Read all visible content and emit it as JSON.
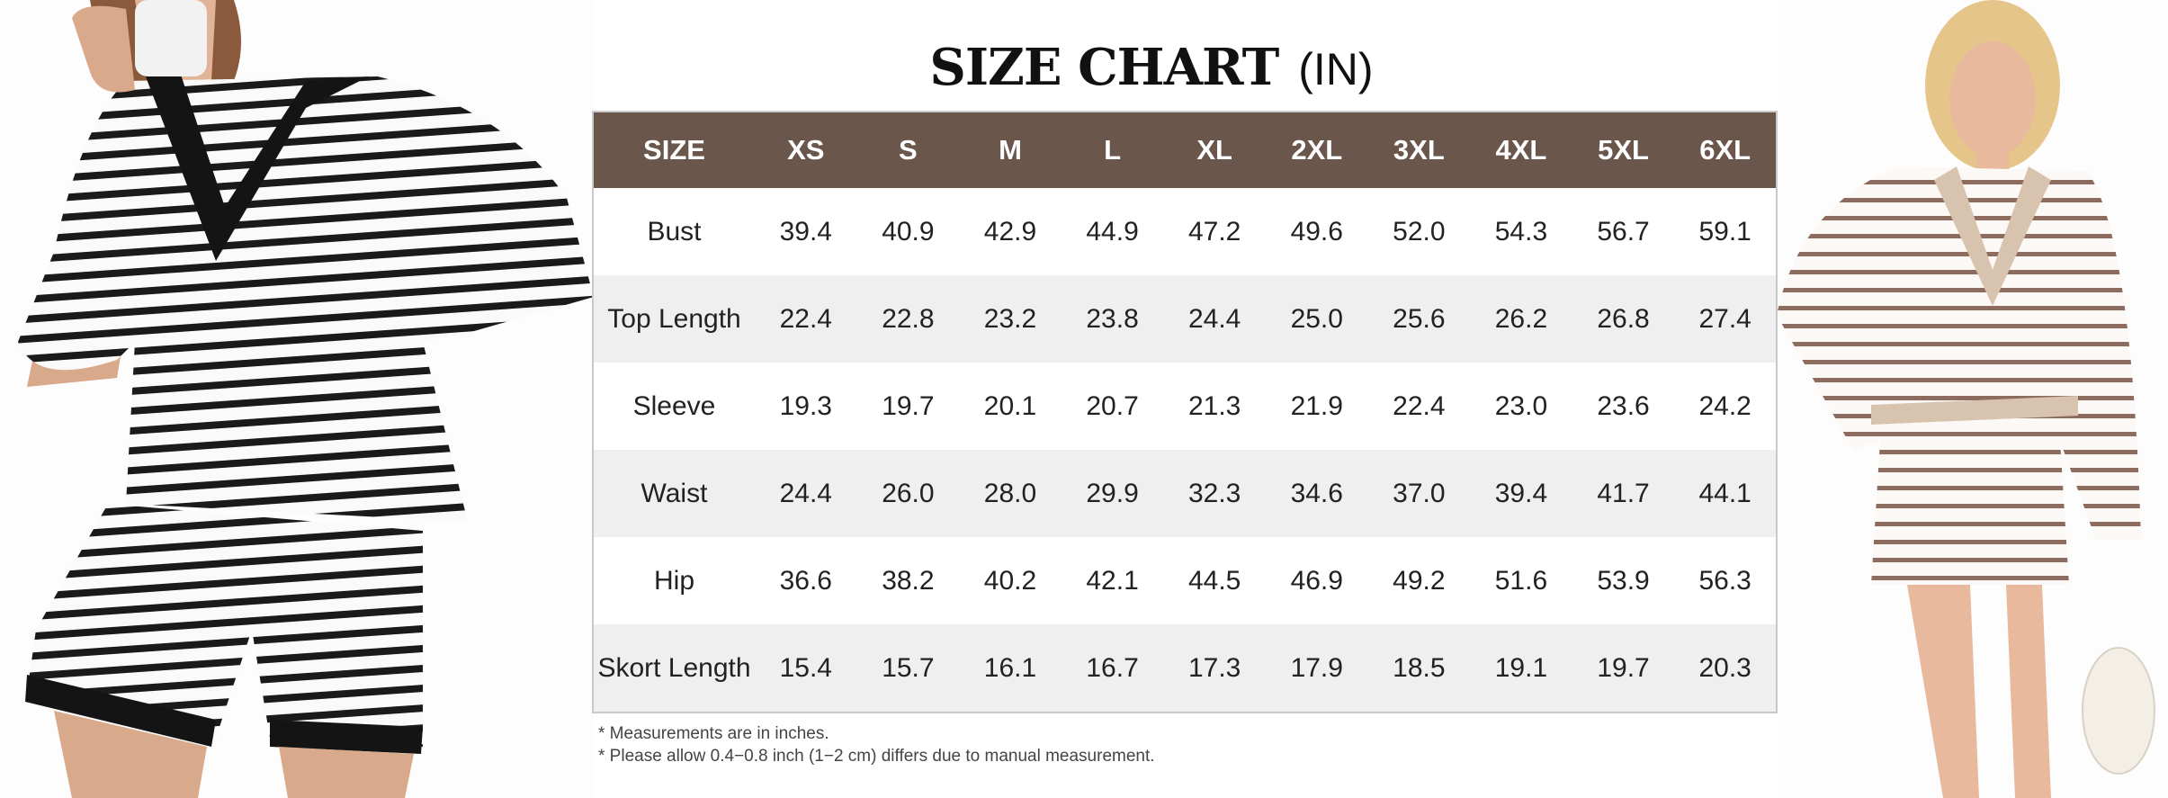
{
  "title": "SIZE CHART",
  "unit": "(IN)",
  "table": {
    "columns": [
      "SIZE",
      "XS",
      "S",
      "M",
      "L",
      "XL",
      "2XL",
      "3XL",
      "4XL",
      "5XL",
      "6XL"
    ],
    "rows": [
      {
        "label": "Bust",
        "values": [
          "39.4",
          "40.9",
          "42.9",
          "44.9",
          "47.2",
          "49.6",
          "52.0",
          "54.3",
          "56.7",
          "59.1"
        ]
      },
      {
        "label": "Top Length",
        "values": [
          "22.4",
          "22.8",
          "23.2",
          "23.8",
          "24.4",
          "25.0",
          "25.6",
          "26.2",
          "26.8",
          "27.4"
        ]
      },
      {
        "label": "Sleeve",
        "values": [
          "19.3",
          "19.7",
          "20.1",
          "20.7",
          "21.3",
          "21.9",
          "22.4",
          "23.0",
          "23.6",
          "24.2"
        ]
      },
      {
        "label": "Waist",
        "values": [
          "24.4",
          "26.0",
          "28.0",
          "29.9",
          "32.3",
          "34.6",
          "37.0",
          "39.4",
          "41.7",
          "44.1"
        ]
      },
      {
        "label": "Hip",
        "values": [
          "36.6",
          "38.2",
          "40.2",
          "42.1",
          "44.5",
          "46.9",
          "49.2",
          "51.6",
          "53.9",
          "56.3"
        ]
      },
      {
        "label": "Skort Length",
        "values": [
          "15.4",
          "15.7",
          "16.1",
          "16.7",
          "17.3",
          "17.9",
          "18.5",
          "19.1",
          "19.7",
          "20.3"
        ]
      }
    ]
  },
  "notes": [
    "* Measurements are in inches.",
    "* Please allow 0.4−0.8 inch (1−2 cm) differs due to manual measurement."
  ]
}
